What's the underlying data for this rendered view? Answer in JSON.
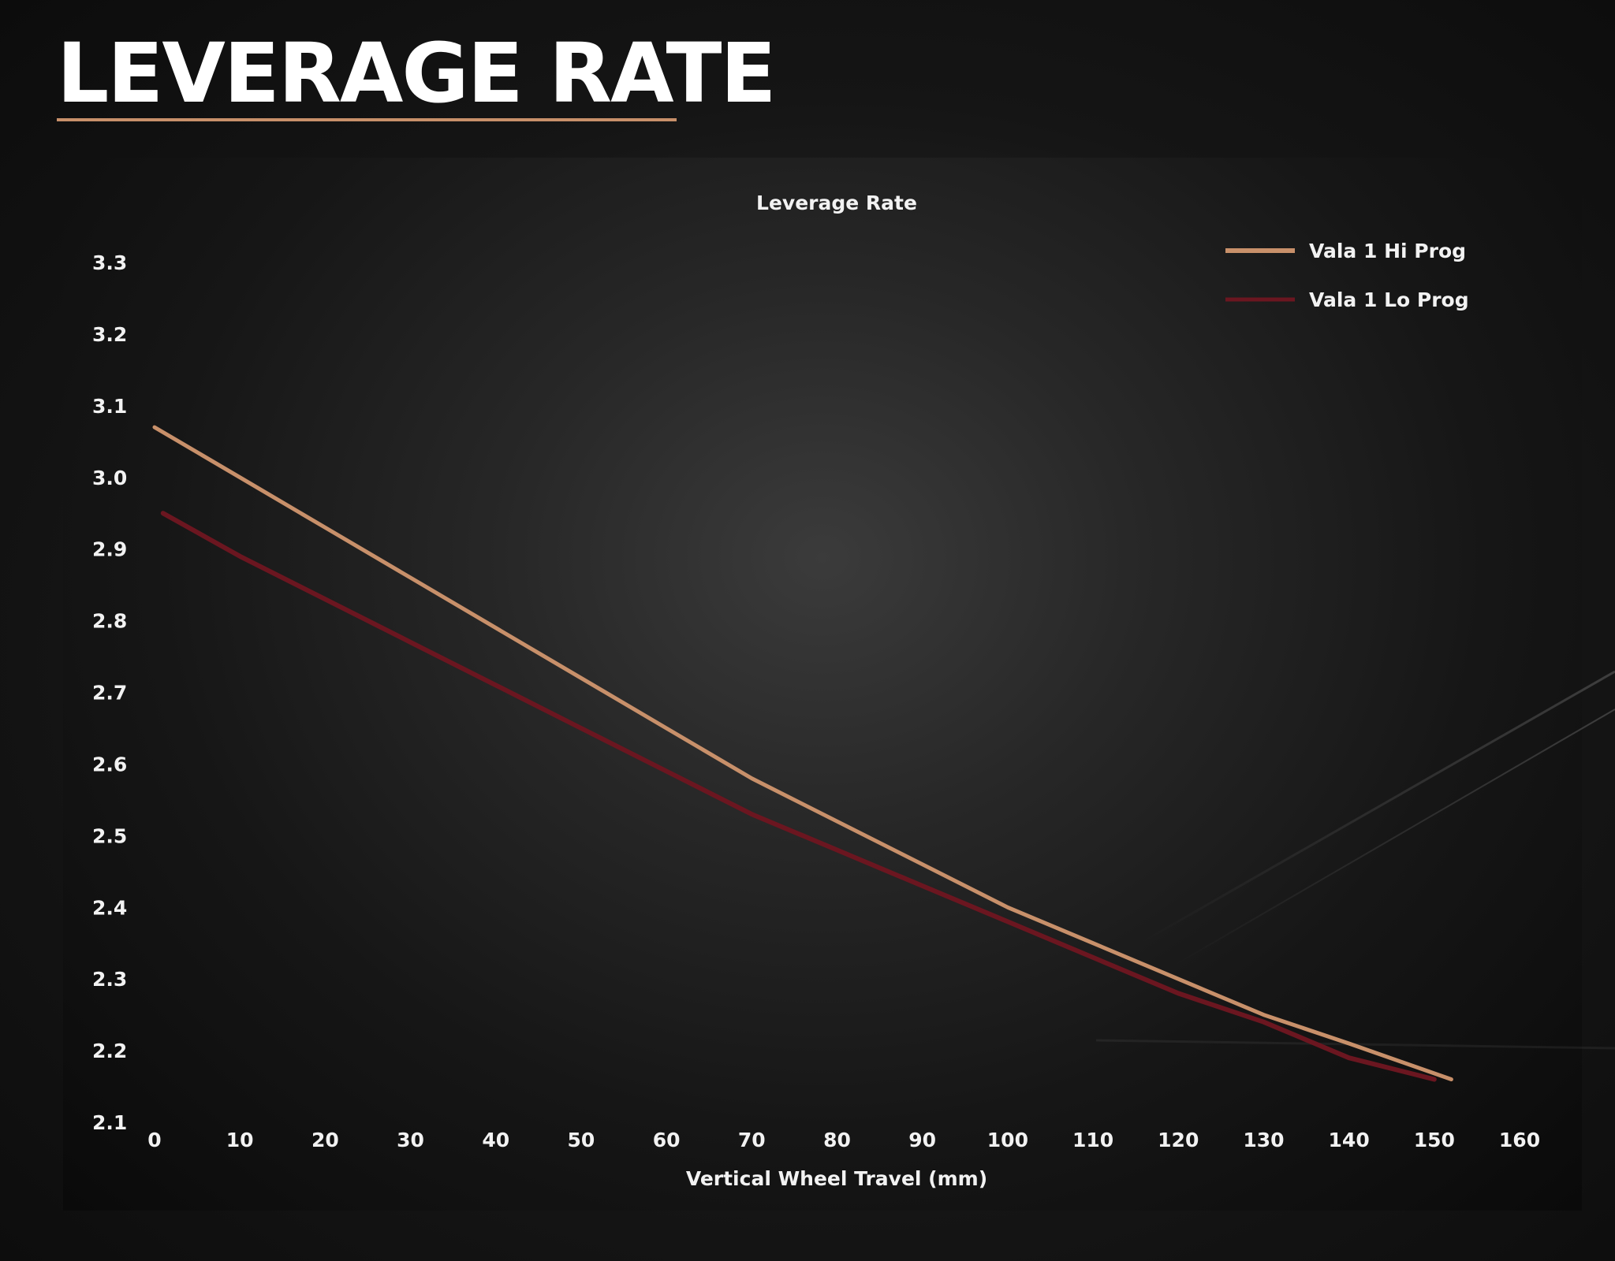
{
  "page": {
    "title": "LEVERAGE RATE"
  },
  "colors": {
    "accent": "#c8906a",
    "hi_prog": "#c8906a",
    "lo_prog": "#6b1620"
  },
  "chart_data": {
    "type": "line",
    "title": "Leverage Rate",
    "xlabel": "Vertical Wheel Travel (mm)",
    "ylabel": "",
    "xlim": [
      0,
      160
    ],
    "ylim": [
      2.1,
      3.3
    ],
    "x_ticks": [
      0,
      10,
      20,
      30,
      40,
      50,
      60,
      70,
      80,
      90,
      100,
      110,
      120,
      130,
      140,
      150,
      160
    ],
    "y_ticks": [
      "3.3",
      "3.2",
      "3.1",
      "3.0",
      "2.9",
      "2.8",
      "2.7",
      "2.6",
      "2.5",
      "2.4",
      "2.3",
      "2.2",
      "2.1"
    ],
    "grid": false,
    "legend_position": "top-right",
    "series": [
      {
        "name": "Vala 1 Hi Prog",
        "color": "#c8906a",
        "x": [
          0,
          10,
          20,
          30,
          40,
          50,
          60,
          70,
          80,
          90,
          100,
          110,
          120,
          130,
          140,
          152
        ],
        "y": [
          3.07,
          3.0,
          2.93,
          2.86,
          2.79,
          2.72,
          2.65,
          2.58,
          2.52,
          2.46,
          2.4,
          2.35,
          2.3,
          2.25,
          2.21,
          2.16
        ]
      },
      {
        "name": "Vala 1 Lo Prog",
        "color": "#6b1620",
        "x": [
          1,
          10,
          20,
          30,
          40,
          50,
          60,
          70,
          80,
          90,
          100,
          110,
          120,
          130,
          140,
          150
        ],
        "y": [
          2.95,
          2.89,
          2.83,
          2.77,
          2.71,
          2.65,
          2.59,
          2.53,
          2.48,
          2.43,
          2.38,
          2.33,
          2.28,
          2.24,
          2.19,
          2.16
        ]
      }
    ]
  }
}
